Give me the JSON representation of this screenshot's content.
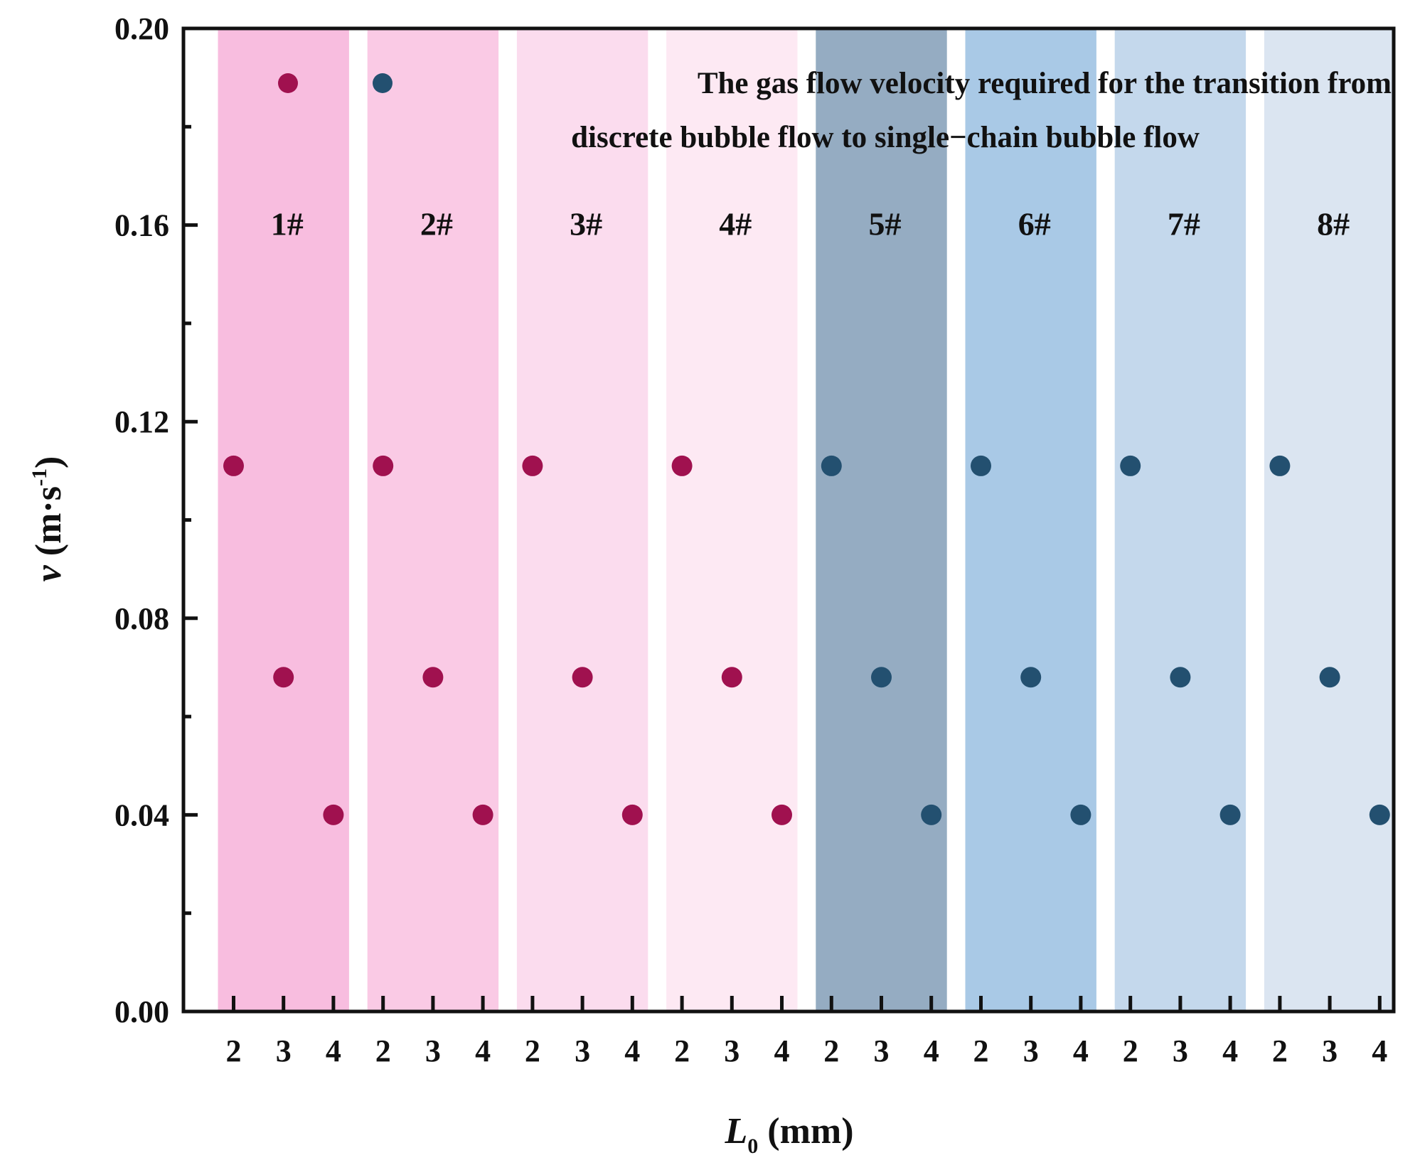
{
  "chart_data": {
    "type": "scatter",
    "ylabel": {
      "symbol": "v",
      "unit_open": " (m·s",
      "unit_exp": "-1",
      "unit_close": ")"
    },
    "xlabel": {
      "symbol": "L",
      "subscript": "0",
      "unit": " (mm)"
    },
    "ylim": [
      0,
      0.2
    ],
    "yticks": [
      0.0,
      0.04,
      0.08,
      0.12,
      0.16,
      0.2
    ],
    "ytick_labels": [
      "0.00",
      "0.04",
      "0.08",
      "0.12",
      "0.16",
      "0.20"
    ],
    "x_categories": [
      "2",
      "3",
      "4"
    ],
    "legend": {
      "line1": "The gas flow velocity required for the transition from",
      "line2": "discrete bubble flow to single−chain bubble flow"
    },
    "groups": [
      {
        "name": "1#",
        "band_color": "#f8bddf",
        "marker_color": "#a0114f",
        "points": [
          {
            "x": "2",
            "y": 0.111
          },
          {
            "x": "3",
            "y": 0.068
          },
          {
            "x": "4",
            "y": 0.04
          }
        ]
      },
      {
        "name": "2#",
        "band_color": "#facae5",
        "marker_color": "#a0114f",
        "points": [
          {
            "x": "2",
            "y": 0.111
          },
          {
            "x": "3",
            "y": 0.068
          },
          {
            "x": "4",
            "y": 0.04
          }
        ]
      },
      {
        "name": "3#",
        "band_color": "#fbdcee",
        "marker_color": "#a0114f",
        "points": [
          {
            "x": "2",
            "y": 0.111
          },
          {
            "x": "3",
            "y": 0.068
          },
          {
            "x": "4",
            "y": 0.04
          }
        ]
      },
      {
        "name": "4#",
        "band_color": "#fde9f3",
        "marker_color": "#a0114f",
        "points": [
          {
            "x": "2",
            "y": 0.111
          },
          {
            "x": "3",
            "y": 0.068
          },
          {
            "x": "4",
            "y": 0.04
          }
        ]
      },
      {
        "name": "5#",
        "band_color": "#95acc2",
        "marker_color": "#235070",
        "points": [
          {
            "x": "2",
            "y": 0.111
          },
          {
            "x": "3",
            "y": 0.068
          },
          {
            "x": "4",
            "y": 0.04
          }
        ]
      },
      {
        "name": "6#",
        "band_color": "#a9c9e6",
        "marker_color": "#235070",
        "points": [
          {
            "x": "2",
            "y": 0.111
          },
          {
            "x": "3",
            "y": 0.068
          },
          {
            "x": "4",
            "y": 0.04
          }
        ]
      },
      {
        "name": "7#",
        "band_color": "#c4d8ec",
        "marker_color": "#235070",
        "points": [
          {
            "x": "2",
            "y": 0.111
          },
          {
            "x": "3",
            "y": 0.068
          },
          {
            "x": "4",
            "y": 0.04
          }
        ]
      },
      {
        "name": "8#",
        "band_color": "#dbe5f1",
        "marker_color": "#235070",
        "points": [
          {
            "x": "2",
            "y": 0.111
          },
          {
            "x": "3",
            "y": 0.068
          },
          {
            "x": "4",
            "y": 0.04
          }
        ]
      }
    ]
  }
}
